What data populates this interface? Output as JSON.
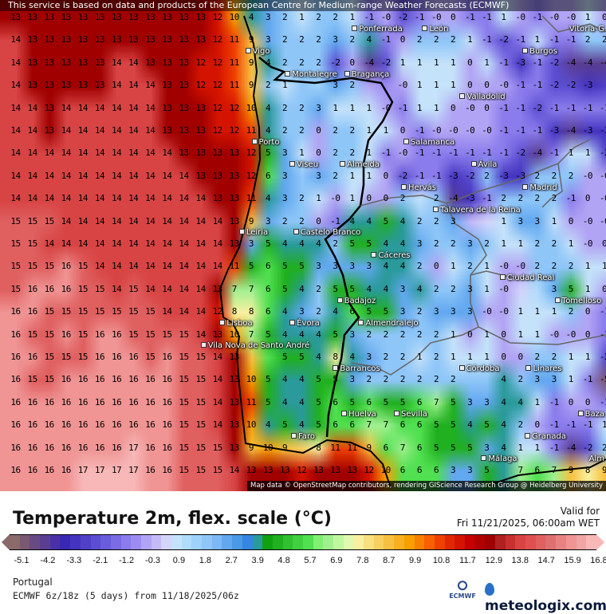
{
  "header": {
    "disclaimer": "This service is based on data and products of the European Centre for Medium-range Weather Forecasts (ECMWF)"
  },
  "map": {
    "attribution": "Map data © OpenStreetMap contributors, rendering GIScience Research Group @ Heidelberg University",
    "grid_values": [
      [
        "13",
        "13",
        "13",
        "13",
        "13",
        "13",
        "13",
        "13",
        "13",
        "13",
        "13",
        "13",
        "12",
        "10",
        "4",
        "3",
        "2",
        "1",
        "2",
        "2",
        "1",
        "-1",
        "-0",
        "-2",
        "-1",
        "-0",
        "0",
        "-1",
        "-1",
        "1",
        "-0",
        "-1",
        "-0",
        "-0",
        "1",
        "0"
      ],
      [
        "14",
        "13",
        "13",
        "13",
        "13",
        "13",
        "13",
        "13",
        "13",
        "13",
        "13",
        "13",
        "12",
        "11",
        "9",
        "3",
        "2",
        "2",
        "2",
        "3",
        "2",
        "4",
        "-1",
        "0",
        "2",
        "2",
        "2",
        "1",
        "-1",
        "-2",
        "-1",
        "1",
        "-1",
        "-1",
        "2",
        "2"
      ],
      [
        "14",
        "13",
        "13",
        "13",
        "13",
        "13",
        "14",
        "14",
        "13",
        "13",
        "13",
        "12",
        "12",
        "11",
        "9",
        "4",
        "2",
        "2",
        "2",
        "-2",
        "0",
        "-4",
        "-2",
        "1",
        "1",
        "1",
        "1",
        "0",
        "1",
        "-1",
        "-3",
        "-1",
        "-2",
        "-4",
        "-4",
        "-4"
      ],
      [
        "14",
        "13",
        "13",
        "13",
        "13",
        "13",
        "14",
        "14",
        "14",
        "13",
        "13",
        "12",
        "12",
        "11",
        "9",
        "2",
        "1",
        null,
        null,
        "3",
        "2",
        null,
        null,
        "-0",
        "1",
        "1",
        "1",
        "0",
        "0",
        "-0",
        "-1",
        "-1",
        "-2",
        "-2",
        "-3",
        null
      ],
      [
        "14",
        "14",
        "13",
        "14",
        "14",
        "14",
        "14",
        "14",
        "14",
        "13",
        "13",
        "13",
        "12",
        "12",
        "10",
        "4",
        "2",
        "2",
        "3",
        "1",
        "1",
        "1",
        "-0",
        "-1",
        "1",
        "1",
        "0",
        "-0",
        "0",
        "-1",
        "-1",
        "-2",
        "-1",
        "-1",
        "-1",
        "-1"
      ],
      [
        "14",
        "14",
        "13",
        "14",
        "14",
        "14",
        "14",
        "14",
        "14",
        "13",
        "13",
        "13",
        "12",
        "12",
        "11",
        "4",
        "2",
        "2",
        "0",
        "2",
        "2",
        "1",
        "1",
        "0",
        "-1",
        "-0",
        "-0",
        "-0",
        "-0",
        "-1",
        "-1",
        "-1",
        "-3",
        "-4",
        "-3",
        "-3"
      ],
      [
        "14",
        "14",
        "14",
        "14",
        "14",
        "14",
        "14",
        "14",
        "14",
        "14",
        "13",
        "13",
        "13",
        "13",
        "12",
        "5",
        "3",
        "1",
        "0",
        "2",
        "2",
        "1",
        "-1",
        "-0",
        "-1",
        "-1",
        "-1",
        "-1",
        "-1",
        "-1",
        "-2",
        "-4",
        "-1",
        "1",
        "1",
        "-2"
      ],
      [
        "14",
        "14",
        "14",
        "14",
        "14",
        "14",
        "14",
        "14",
        "14",
        "14",
        "14",
        "13",
        "13",
        "13",
        "12",
        "6",
        "3",
        null,
        "3",
        "2",
        "1",
        "1",
        "0",
        "-2",
        "-1",
        "-1",
        "-3",
        "-2",
        "2",
        "-3",
        "-3",
        "2",
        "2",
        "2",
        "-0",
        "-0"
      ],
      [
        "14",
        "14",
        "14",
        "14",
        "14",
        "14",
        "14",
        "14",
        "14",
        "14",
        "14",
        "14",
        "13",
        "13",
        "11",
        "4",
        "3",
        "2",
        "1",
        "-0",
        "1",
        "0",
        "0",
        "2",
        null,
        "2",
        "-4",
        "-3",
        "-1",
        "2",
        "2",
        "2",
        "2",
        "-1",
        "0",
        "-0"
      ],
      [
        "15",
        "15",
        "15",
        "14",
        "14",
        "14",
        "14",
        "14",
        "14",
        "14",
        "14",
        "14",
        "14",
        "13",
        "9",
        "3",
        "2",
        "2",
        "0",
        "-1",
        "4",
        "4",
        "5",
        "4",
        "2",
        "2",
        "3",
        null,
        null,
        "1",
        "3",
        "3",
        "1",
        "0",
        "-0",
        "-0"
      ],
      [
        "15",
        "15",
        "14",
        "14",
        "14",
        "14",
        "14",
        "14",
        "14",
        "14",
        "14",
        "14",
        "14",
        "13",
        "3",
        "5",
        "4",
        "4",
        "4",
        "2",
        "5",
        "5",
        "4",
        "4",
        "3",
        "2",
        "2",
        "3",
        "2",
        "1",
        "1",
        "2",
        "2",
        "1",
        "-0",
        "0"
      ],
      [
        "15",
        "15",
        "15",
        "16",
        "15",
        "14",
        "14",
        "14",
        "14",
        "14",
        "14",
        "14",
        "14",
        "11",
        "5",
        "6",
        "5",
        "5",
        "3",
        "3",
        "3",
        "3",
        "4",
        "4",
        "2",
        "0",
        "1",
        "2",
        "1",
        "-0",
        "-0",
        "2",
        "2",
        "2",
        "1",
        "1"
      ],
      [
        "15",
        "16",
        "16",
        "16",
        "15",
        "15",
        "14",
        "15",
        "14",
        "14",
        "14",
        "14",
        "13",
        "7",
        "7",
        "6",
        "5",
        "4",
        "2",
        "5",
        "5",
        "4",
        "4",
        "3",
        "4",
        "2",
        "2",
        "3",
        "1",
        "-0",
        null,
        null,
        "3",
        "5",
        "1",
        "0"
      ],
      [
        "16",
        "16",
        "15",
        "15",
        "15",
        "15",
        "15",
        "15",
        "15",
        "14",
        "14",
        "14",
        "12",
        "8",
        "8",
        "6",
        "4",
        "3",
        "2",
        "4",
        "6",
        "5",
        "5",
        "3",
        "2",
        "3",
        "3",
        "3",
        "-0",
        "-0",
        "1",
        "1",
        "1",
        "2",
        "0",
        "-1"
      ],
      [
        "16",
        "15",
        "15",
        "16",
        "15",
        "16",
        "16",
        "15",
        "15",
        "15",
        "15",
        "14",
        "13",
        "10",
        "7",
        "5",
        "4",
        "4",
        "4",
        "5",
        "3",
        "2",
        "2",
        "2",
        "2",
        "2",
        "1",
        "0",
        "1",
        "0",
        "1",
        "1",
        "-0",
        "-0",
        "0",
        "-1"
      ],
      [
        "16",
        "16",
        "15",
        "15",
        "15",
        "16",
        "16",
        "16",
        "15",
        "16",
        "15",
        "15",
        "14",
        "13",
        null,
        null,
        "5",
        "5",
        "4",
        "8",
        "4",
        "3",
        "2",
        "2",
        "1",
        "2",
        "1",
        "1",
        "1",
        "0",
        "0",
        "2",
        "2",
        "1",
        "1",
        "-2"
      ],
      [
        "16",
        "15",
        "15",
        "16",
        "16",
        "16",
        "16",
        "16",
        "16",
        "16",
        "15",
        "15",
        "14",
        "13",
        "10",
        "5",
        "4",
        "4",
        "5",
        "5",
        "3",
        "2",
        "2",
        "2",
        "2",
        "2",
        "2",
        null,
        null,
        "4",
        "2",
        "3",
        "3",
        "1",
        "-1",
        "-5"
      ],
      [
        "16",
        "16",
        "16",
        "16",
        "16",
        "16",
        "16",
        "16",
        "16",
        "16",
        "15",
        "15",
        "14",
        "13",
        "11",
        "5",
        "4",
        "4",
        "5",
        "6",
        "5",
        "6",
        "5",
        "5",
        "6",
        "7",
        "5",
        "3",
        "3",
        "4",
        "4",
        "1",
        "-1",
        "0",
        "0",
        "-1"
      ],
      [
        "16",
        "16",
        "16",
        "16",
        "16",
        "16",
        "16",
        "16",
        "16",
        "16",
        "15",
        "15",
        "14",
        "13",
        "10",
        "4",
        "5",
        "4",
        "5",
        "6",
        "6",
        "7",
        "7",
        "6",
        "6",
        "5",
        "5",
        "4",
        "5",
        "4",
        "2",
        "0",
        "-1",
        "-1",
        "-1",
        "1"
      ],
      [
        "16",
        "16",
        "16",
        "16",
        "16",
        "16",
        "16",
        "17",
        "16",
        "16",
        "15",
        "15",
        "15",
        "13",
        "9",
        "10",
        "9",
        null,
        "8",
        "11",
        "11",
        "9",
        "6",
        "7",
        "6",
        "5",
        "5",
        "5",
        "3",
        "4",
        "1",
        "1",
        "-1",
        "-4",
        "-2",
        "2"
      ],
      [
        "16",
        "16",
        "16",
        "16",
        "17",
        "17",
        "17",
        "17",
        "16",
        "16",
        "15",
        "15",
        "15",
        "14",
        "13",
        "13",
        "13",
        "12",
        "13",
        "13",
        "13",
        "12",
        "10",
        "6",
        "6",
        "6",
        "3",
        "3",
        "5",
        null,
        "7",
        "6",
        "7",
        "9",
        "8",
        "9"
      ]
    ],
    "cities": [
      "Vitoria-G",
      "Ponferrada",
      "León",
      "Burgos",
      "Vigo",
      "Montalegre",
      "Bragança",
      "Valladolid",
      "Porto",
      "Salamanca",
      "Viseu",
      "Almeida",
      "Ávila",
      "Madrid",
      "Hervás",
      "Castelo\nBranco",
      "Talavera\nde la Reina",
      "Leiria",
      "Cáceres",
      "Ciudad\nReal",
      "Tomelloso",
      "Badajoz",
      "Almendralejo",
      "Lisboa",
      "Évora",
      "Vila Nova\nde Santo\nAndré",
      "Barrancos",
      "Linares",
      "Córdoba",
      "Baza",
      "Sevilla",
      "Granada",
      "Huelva",
      "Faro",
      "Málaga",
      "Alm"
    ]
  },
  "legend": {
    "title": "Temperature 2m, flex. scale (°C)",
    "valid_label": "Valid for",
    "valid_time": "Fri 11/21/2025, 06:00am WET",
    "scale_min": -5.4,
    "scale_max": 17.1,
    "ticks": [
      "-5.1",
      "-4.2",
      "-3.3",
      "-2.1",
      "-1.2",
      "-0.3",
      "0.9",
      "1.8",
      "2.7",
      "3.9",
      "4.8",
      "5.7",
      "6.9",
      "7.8",
      "8.7",
      "9.9",
      "10.8",
      "11.7",
      "12.9",
      "13.8",
      "14.7",
      "15.9",
      "16.8"
    ],
    "colors": [
      "#8a6a6a",
      "#7a5a72",
      "#6a4a82",
      "#5a3e92",
      "#4a30a8",
      "#3a28b4",
      "#4434c0",
      "#5040c8",
      "#5c4ed2",
      "#6a5cdc",
      "#7a6ce4",
      "#8a7cec",
      "#9c8cf2",
      "#b2a4f4",
      "#c4baf8",
      "#d4d4fa",
      "#c4e2fa",
      "#b0dcfa",
      "#9ed2fa",
      "#8ec6f8",
      "#7cb8f4",
      "#62a8f0",
      "#4a98e8",
      "#3486e0",
      "#2a9a9a",
      "#10a010",
      "#20b020",
      "#30c030",
      "#40d040",
      "#50e050",
      "#80f070",
      "#a0f090",
      "#c0f8a0",
      "#e0f8b0",
      "#f8f0a0",
      "#f8e080",
      "#f8d060",
      "#f8c040",
      "#f8b020",
      "#f8a000",
      "#f88000",
      "#f86000",
      "#f04000",
      "#e02800",
      "#d41400",
      "#c40000",
      "#b00000",
      "#a00000",
      "#b02020",
      "#c83030",
      "#d84444",
      "#e05050",
      "#e06060",
      "#e07070",
      "#e88282",
      "#f09494",
      "#f0a4a4",
      "#f8b8b8"
    ]
  },
  "footer": {
    "region": "Portugal",
    "run": "ECMWF 6z/18z (5 days) from  11/18/2025/06z",
    "ecmwf_logo": "ECMWF",
    "brand": "meteologix.com"
  }
}
